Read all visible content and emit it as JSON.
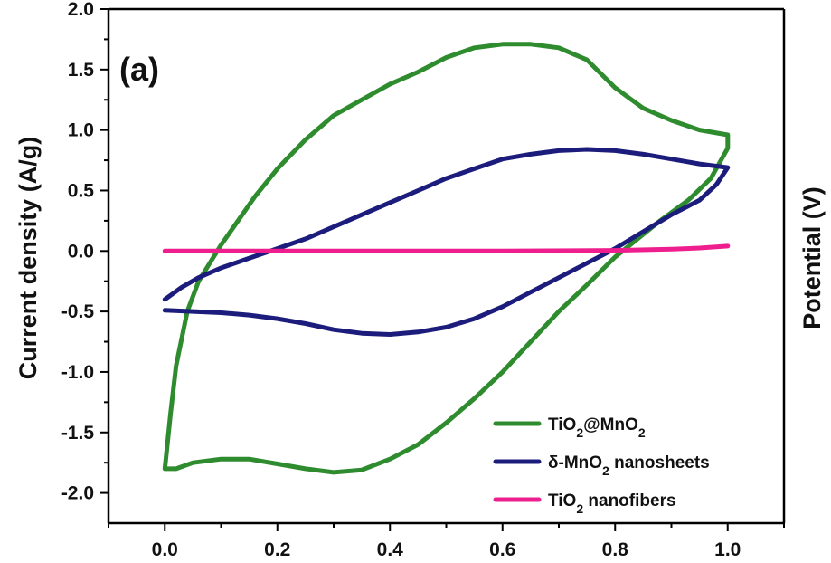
{
  "chart_data": {
    "type": "line",
    "panel_label": "(a)",
    "xlabel": "",
    "ylabel": "Current density (A/g)",
    "y2label": "Potential (V)",
    "xlim": [
      -0.1,
      1.1
    ],
    "ylim": [
      -2.25,
      2.0
    ],
    "x_ticks": [
      "0.0",
      "0.2",
      "0.4",
      "0.6",
      "0.8",
      "1.0"
    ],
    "y_ticks": [
      "2.0",
      "1.5",
      "1.0",
      "0.5",
      "0.0",
      "-0.5",
      "-1.0",
      "-1.5",
      "-2.0"
    ],
    "legend_position": "bottom-right",
    "grid": false,
    "series": [
      {
        "name_parts": [
          "TiO",
          "2",
          "@MnO",
          "2",
          ""
        ],
        "color": "#2e8b2e",
        "points": [
          [
            0.0,
            -1.8
          ],
          [
            0.01,
            -1.35
          ],
          [
            0.02,
            -0.95
          ],
          [
            0.04,
            -0.5
          ],
          [
            0.06,
            -0.25
          ],
          [
            0.08,
            -0.1
          ],
          [
            0.1,
            0.05
          ],
          [
            0.13,
            0.25
          ],
          [
            0.16,
            0.45
          ],
          [
            0.2,
            0.68
          ],
          [
            0.25,
            0.92
          ],
          [
            0.3,
            1.12
          ],
          [
            0.35,
            1.25
          ],
          [
            0.4,
            1.38
          ],
          [
            0.45,
            1.48
          ],
          [
            0.5,
            1.6
          ],
          [
            0.55,
            1.68
          ],
          [
            0.6,
            1.71
          ],
          [
            0.65,
            1.71
          ],
          [
            0.7,
            1.68
          ],
          [
            0.75,
            1.58
          ],
          [
            0.8,
            1.35
          ],
          [
            0.85,
            1.18
          ],
          [
            0.9,
            1.08
          ],
          [
            0.95,
            1.0
          ],
          [
            1.0,
            0.96
          ],
          [
            1.0,
            0.85
          ],
          [
            0.97,
            0.6
          ],
          [
            0.93,
            0.42
          ],
          [
            0.88,
            0.25
          ],
          [
            0.84,
            0.1
          ],
          [
            0.8,
            -0.05
          ],
          [
            0.75,
            -0.28
          ],
          [
            0.7,
            -0.5
          ],
          [
            0.65,
            -0.75
          ],
          [
            0.6,
            -1.0
          ],
          [
            0.55,
            -1.22
          ],
          [
            0.5,
            -1.42
          ],
          [
            0.45,
            -1.6
          ],
          [
            0.4,
            -1.72
          ],
          [
            0.35,
            -1.81
          ],
          [
            0.3,
            -1.83
          ],
          [
            0.25,
            -1.8
          ],
          [
            0.2,
            -1.76
          ],
          [
            0.15,
            -1.72
          ],
          [
            0.1,
            -1.72
          ],
          [
            0.05,
            -1.75
          ],
          [
            0.02,
            -1.8
          ],
          [
            0.0,
            -1.8
          ]
        ]
      },
      {
        "name_parts": [
          "δ-MnO",
          "2",
          " nanosheets"
        ],
        "color": "#1c1c7c",
        "points": [
          [
            0.0,
            -0.4
          ],
          [
            0.03,
            -0.3
          ],
          [
            0.06,
            -0.22
          ],
          [
            0.1,
            -0.14
          ],
          [
            0.15,
            -0.06
          ],
          [
            0.2,
            0.02
          ],
          [
            0.25,
            0.1
          ],
          [
            0.3,
            0.2
          ],
          [
            0.35,
            0.3
          ],
          [
            0.4,
            0.4
          ],
          [
            0.45,
            0.5
          ],
          [
            0.5,
            0.6
          ],
          [
            0.55,
            0.68
          ],
          [
            0.6,
            0.76
          ],
          [
            0.65,
            0.8
          ],
          [
            0.7,
            0.83
          ],
          [
            0.75,
            0.84
          ],
          [
            0.8,
            0.83
          ],
          [
            0.85,
            0.8
          ],
          [
            0.9,
            0.76
          ],
          [
            0.95,
            0.72
          ],
          [
            1.0,
            0.69
          ],
          [
            0.98,
            0.55
          ],
          [
            0.95,
            0.42
          ],
          [
            0.9,
            0.3
          ],
          [
            0.85,
            0.16
          ],
          [
            0.8,
            0.02
          ],
          [
            0.75,
            -0.1
          ],
          [
            0.7,
            -0.22
          ],
          [
            0.65,
            -0.34
          ],
          [
            0.6,
            -0.46
          ],
          [
            0.55,
            -0.56
          ],
          [
            0.5,
            -0.63
          ],
          [
            0.45,
            -0.67
          ],
          [
            0.4,
            -0.69
          ],
          [
            0.35,
            -0.68
          ],
          [
            0.3,
            -0.65
          ],
          [
            0.25,
            -0.6
          ],
          [
            0.2,
            -0.56
          ],
          [
            0.15,
            -0.53
          ],
          [
            0.1,
            -0.51
          ],
          [
            0.05,
            -0.5
          ],
          [
            0.0,
            -0.49
          ]
        ]
      },
      {
        "name_parts": [
          "TiO",
          "2",
          " nanofibers"
        ],
        "color": "#ee1e8e",
        "points": [
          [
            0.0,
            0.0
          ],
          [
            0.2,
            0.0
          ],
          [
            0.4,
            0.0
          ],
          [
            0.6,
            0.0
          ],
          [
            0.8,
            0.005
          ],
          [
            0.9,
            0.015
          ],
          [
            0.95,
            0.025
          ],
          [
            1.0,
            0.04
          ]
        ]
      }
    ]
  }
}
